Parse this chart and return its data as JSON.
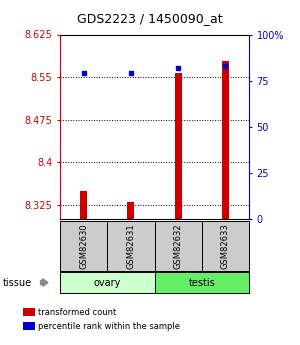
{
  "title": "GDS2223 / 1450090_at",
  "samples": [
    "GSM82630",
    "GSM82631",
    "GSM82632",
    "GSM82633"
  ],
  "groups": [
    "ovary",
    "ovary",
    "testis",
    "testis"
  ],
  "group_colors": {
    "ovary": "#ccffcc",
    "testis": "#66ee66"
  },
  "transformed_counts": [
    8.349,
    8.33,
    8.558,
    8.578
  ],
  "percentile_ranks": [
    79,
    79,
    82,
    83
  ],
  "ylim_left": [
    8.3,
    8.625
  ],
  "ylim_right": [
    0,
    100
  ],
  "yticks_left": [
    8.325,
    8.4,
    8.475,
    8.55,
    8.625
  ],
  "yticks_right": [
    0,
    25,
    50,
    75,
    100
  ],
  "bar_color": "#cc0000",
  "dot_color": "#0000cc",
  "bar_width": 0.15,
  "background_color": "#ffffff",
  "tick_label_color_left": "#cc0000",
  "tick_label_color_right": "#0000cc",
  "legend_red_label": "transformed count",
  "legend_blue_label": "percentile rank within the sample",
  "sample_box_color": "#cccccc",
  "title_fontsize": 9,
  "tick_fontsize": 7,
  "sample_fontsize": 6,
  "group_fontsize": 7,
  "legend_fontsize": 6
}
